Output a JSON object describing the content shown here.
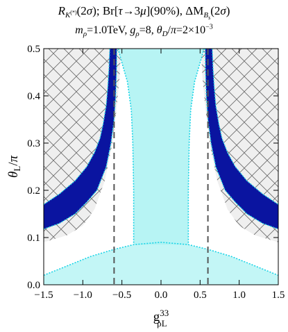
{
  "chart_data": {
    "type": "area",
    "title_line1": "R_K(*)(2σ); Br[τ→3μ](90%), ΔM_Bs(2σ)",
    "title_line2": "m_ρ=1.0TeV, g_ρ=8, θ_D/π=2×10⁻³",
    "xlabel": "g_ρL^33",
    "ylabel": "θ_L/π",
    "xlim": [
      -1.5,
      1.5
    ],
    "ylim": [
      0.0,
      0.5
    ],
    "xticks": [
      "-1.5",
      "-1.0",
      "-0.5",
      "0.0",
      "0.5",
      "1.0",
      "1.5"
    ],
    "yticks": [
      "0.0",
      "0.1",
      "0.2",
      "0.3",
      "0.4",
      "0.5"
    ],
    "grid": false,
    "dashed_vertical_lines_x": [
      -0.6,
      0.6
    ],
    "regions": [
      {
        "id": "bs-mixing-allowed",
        "fill": "#aaf2f2",
        "outline": "#1ad3e6",
        "description_color": "cyan band, dotted cyan border"
      },
      {
        "id": "tau-3mu-excluded",
        "pattern": "crosshatch",
        "fill": "#efefef",
        "description_color": "light grey with black crosshatch"
      },
      {
        "id": "rk-2sigma",
        "fill": "#0a14a0",
        "outline": "#1ad3e6",
        "description_color": "dark blue bands"
      }
    ],
    "series": [
      {
        "region": "rk-2sigma",
        "side": "left",
        "upper_x": [
          -1.5,
          -1.3,
          -1.1,
          -0.95,
          -0.85,
          -0.78,
          -0.74,
          -0.7,
          -0.68,
          -0.665,
          -0.655
        ],
        "upper_y": [
          0.17,
          0.192,
          0.22,
          0.25,
          0.28,
          0.31,
          0.34,
          0.38,
          0.42,
          0.46,
          0.5
        ],
        "lower_x": [
          -1.5,
          -1.3,
          -1.1,
          -0.95,
          -0.82,
          -0.7,
          -0.64,
          -0.6,
          -0.58,
          -0.57,
          -0.565
        ],
        "lower_y": [
          0.118,
          0.13,
          0.15,
          0.175,
          0.2,
          0.25,
          0.3,
          0.35,
          0.4,
          0.45,
          0.5
        ]
      },
      {
        "region": "rk-2sigma",
        "side": "right",
        "upper_x": [
          0.655,
          0.665,
          0.68,
          0.7,
          0.74,
          0.78,
          0.85,
          0.95,
          1.1,
          1.3,
          1.5
        ],
        "upper_y": [
          0.5,
          0.46,
          0.42,
          0.38,
          0.34,
          0.31,
          0.28,
          0.25,
          0.22,
          0.192,
          0.17
        ],
        "lower_x": [
          0.565,
          0.57,
          0.58,
          0.6,
          0.64,
          0.7,
          0.82,
          0.95,
          1.1,
          1.3,
          1.5
        ],
        "lower_y": [
          0.5,
          0.45,
          0.4,
          0.35,
          0.3,
          0.25,
          0.2,
          0.175,
          0.15,
          0.13,
          0.118
        ]
      },
      {
        "region": "tau-3mu-excluded-boundary",
        "side": "left",
        "x": [
          -1.5,
          -1.2,
          -1.0,
          -0.85,
          -0.72,
          -0.62,
          -0.57,
          -0.53,
          -0.51
        ],
        "y": [
          0.09,
          0.105,
          0.125,
          0.16,
          0.22,
          0.3,
          0.37,
          0.44,
          0.5
        ]
      },
      {
        "region": "tau-3mu-excluded-boundary",
        "side": "right",
        "x": [
          0.51,
          0.53,
          0.57,
          0.62,
          0.72,
          0.85,
          1.0,
          1.2,
          1.5
        ],
        "y": [
          0.5,
          0.44,
          0.37,
          0.3,
          0.22,
          0.16,
          0.125,
          0.105,
          0.09
        ]
      },
      {
        "region": "bs-mixing-allowed-boundary",
        "side": "inner-left",
        "x": [
          -0.55,
          -0.5,
          -0.43,
          -0.38,
          -0.36,
          -0.35,
          -0.35
        ],
        "y": [
          0.5,
          0.47,
          0.43,
          0.37,
          0.3,
          0.2,
          0.085
        ]
      },
      {
        "region": "bs-mixing-allowed-boundary",
        "side": "inner-right",
        "x": [
          0.55,
          0.5,
          0.43,
          0.38,
          0.36,
          0.35,
          0.35
        ],
        "y": [
          0.5,
          0.47,
          0.43,
          0.37,
          0.3,
          0.2,
          0.085
        ]
      },
      {
        "region": "bs-mixing-allowed-boundary",
        "side": "bottom",
        "x": [
          -1.5,
          -1.2,
          -0.9,
          -0.6,
          -0.35,
          0.0,
          0.35,
          0.6,
          0.9,
          1.2,
          1.5
        ],
        "y": [
          0.02,
          0.04,
          0.06,
          0.075,
          0.085,
          0.09,
          0.085,
          0.075,
          0.06,
          0.04,
          0.02
        ]
      }
    ]
  }
}
